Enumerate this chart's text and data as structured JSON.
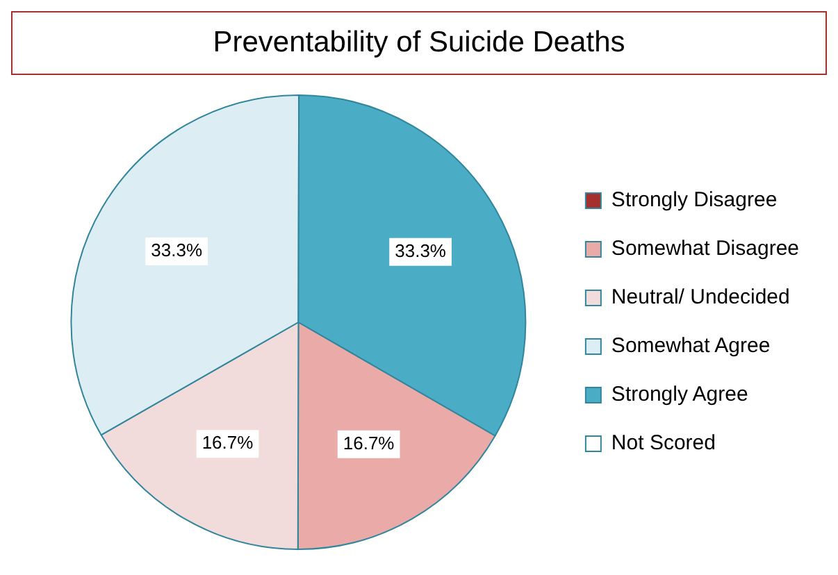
{
  "chart_data": {
    "type": "pie",
    "title": "Preventability of Suicide Deaths",
    "categories": [
      "Strongly Disagree",
      "Somewhat Disagree",
      "Neutral/ Undecided",
      "Somewhat Agree",
      "Strongly Agree",
      "Not Scored"
    ],
    "values": [
      0,
      16.7,
      16.7,
      33.3,
      33.3,
      0
    ],
    "colors": [
      "#a5312e",
      "#e9aaa8",
      "#f2dcdb",
      "#dcedf4",
      "#4bacc6",
      "#ffffff"
    ],
    "value_labels": [
      null,
      "16.7%",
      "16.7%",
      "33.3%",
      "33.3%",
      null
    ],
    "legend": "right"
  }
}
